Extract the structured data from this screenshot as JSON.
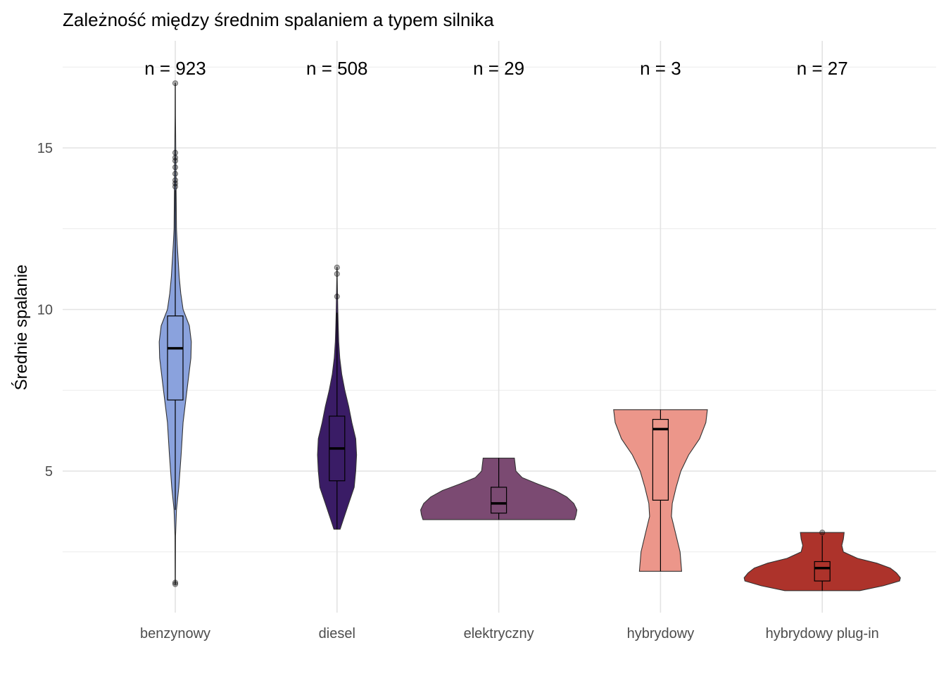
{
  "chart_data": {
    "type": "violin",
    "title": "Zależność między średnim spalaniem a typem silnika",
    "xlabel": "",
    "ylabel": "Średnie spalanie",
    "ylim": [
      0.8,
      18.2
    ],
    "yticks": [
      5,
      10,
      15
    ],
    "grid": true,
    "legend": "none",
    "categories": [
      "benzynowy",
      "diesel",
      "elektryczny",
      "hybrydowy",
      "hybrydowy plug-in"
    ],
    "series": [
      {
        "category": "benzynowy",
        "n_label": "n = 923",
        "color": "#8aa2dd",
        "box": {
          "min": 3.8,
          "q1": 7.2,
          "median": 8.8,
          "q3": 9.8,
          "max": 13.7
        },
        "outliers": [
          1.5,
          1.55,
          13.8,
          13.9,
          14.0,
          14.2,
          14.4,
          14.6,
          14.7,
          14.85,
          17.0
        ],
        "density": [
          [
            1.5,
            0.002
          ],
          [
            3.0,
            0.004
          ],
          [
            3.8,
            0.015
          ],
          [
            4.5,
            0.045
          ],
          [
            5.5,
            0.075
          ],
          [
            6.5,
            0.1
          ],
          [
            7.5,
            0.15
          ],
          [
            8.5,
            0.2
          ],
          [
            9.0,
            0.205
          ],
          [
            9.5,
            0.18
          ],
          [
            10.0,
            0.1
          ],
          [
            10.5,
            0.07
          ],
          [
            11.0,
            0.05
          ],
          [
            12.0,
            0.025
          ],
          [
            12.5,
            0.015
          ],
          [
            13.5,
            0.012
          ],
          [
            14.0,
            0.009
          ],
          [
            15.0,
            0.006
          ],
          [
            16.0,
            0.003
          ],
          [
            17.0,
            0.002
          ]
        ]
      },
      {
        "category": "diesel",
        "n_label": "n = 508",
        "color": "#3a1c66",
        "box": {
          "min": 3.2,
          "q1": 4.7,
          "median": 5.7,
          "q3": 6.7,
          "max": 9.9
        },
        "outliers": [
          10.4,
          11.1,
          11.3
        ],
        "density": [
          [
            3.2,
            0.04
          ],
          [
            3.5,
            0.08
          ],
          [
            4.0,
            0.15
          ],
          [
            4.5,
            0.22
          ],
          [
            5.0,
            0.24
          ],
          [
            5.5,
            0.25
          ],
          [
            6.0,
            0.24
          ],
          [
            6.5,
            0.19
          ],
          [
            7.0,
            0.15
          ],
          [
            7.5,
            0.1
          ],
          [
            8.0,
            0.06
          ],
          [
            8.5,
            0.035
          ],
          [
            9.0,
            0.022
          ],
          [
            9.5,
            0.015
          ],
          [
            10.0,
            0.01
          ],
          [
            10.5,
            0.006
          ],
          [
            11.0,
            0.003
          ],
          [
            11.3,
            0.002
          ]
        ]
      },
      {
        "category": "elektryczny",
        "n_label": "n = 29",
        "color": "#7b4a72",
        "box": {
          "min": 3.5,
          "q1": 3.7,
          "median": 4.0,
          "q3": 4.5,
          "max": 5.4
        },
        "outliers": [],
        "density": [
          [
            3.5,
            0.97
          ],
          [
            3.65,
            0.99
          ],
          [
            3.8,
            1.0
          ],
          [
            4.0,
            0.96
          ],
          [
            4.2,
            0.87
          ],
          [
            4.4,
            0.72
          ],
          [
            4.6,
            0.5
          ],
          [
            4.8,
            0.3
          ],
          [
            5.0,
            0.22
          ],
          [
            5.2,
            0.21
          ],
          [
            5.4,
            0.2
          ]
        ]
      },
      {
        "category": "hybrydowy",
        "n_label": "n = 3",
        "color": "#ec968a",
        "box": {
          "min": 1.9,
          "q1": 4.1,
          "median": 6.3,
          "q3": 6.6,
          "max": 6.9
        },
        "outliers": [],
        "density": [
          [
            1.9,
            0.27
          ],
          [
            2.5,
            0.25
          ],
          [
            3.2,
            0.18
          ],
          [
            3.6,
            0.14
          ],
          [
            4.0,
            0.15
          ],
          [
            4.5,
            0.2
          ],
          [
            5.0,
            0.26
          ],
          [
            5.5,
            0.36
          ],
          [
            6.0,
            0.5
          ],
          [
            6.5,
            0.58
          ],
          [
            6.9,
            0.6
          ]
        ]
      },
      {
        "category": "hybrydowy plug-in",
        "n_label": "n = 27",
        "color": "#ad332b",
        "box": {
          "min": 1.3,
          "q1": 1.6,
          "median": 2.0,
          "q3": 2.2,
          "max": 3.0
        },
        "outliers": [
          3.1
        ],
        "density": [
          [
            1.3,
            0.48
          ],
          [
            1.45,
            0.78
          ],
          [
            1.6,
            0.99
          ],
          [
            1.7,
            1.0
          ],
          [
            1.85,
            0.95
          ],
          [
            2.0,
            0.87
          ],
          [
            2.15,
            0.7
          ],
          [
            2.3,
            0.45
          ],
          [
            2.5,
            0.27
          ],
          [
            2.7,
            0.25
          ],
          [
            2.9,
            0.27
          ],
          [
            3.1,
            0.28
          ]
        ]
      }
    ]
  }
}
